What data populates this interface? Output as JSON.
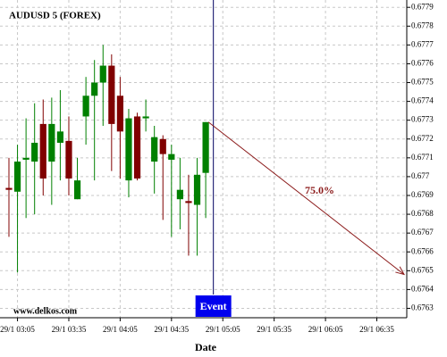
{
  "chart_data": {
    "type": "candlestick",
    "title": "AUDUSD 5 (FOREX)",
    "x_label": "Date",
    "watermark": "www.delkos.com",
    "categories": [
      null,
      "29/1 03:05",
      null,
      null,
      null,
      null,
      null,
      "29/1 03:35",
      null,
      null,
      null,
      null,
      null,
      "29/1 04:05",
      null,
      null,
      null,
      null,
      null,
      "29/1 04:35",
      null,
      null,
      null,
      null,
      null,
      "29/1 05:05",
      null,
      null,
      null,
      null,
      null,
      "29/1 05:35",
      null,
      null,
      null,
      null,
      null,
      "29/1 06:05",
      null,
      null,
      null,
      null,
      null,
      "29/1 06:35",
      null,
      null,
      null
    ],
    "open": [
      0.67694,
      0.67692,
      0.67709,
      0.67708,
      0.67728,
      0.67708,
      0.67718,
      0.67719,
      0.67688,
      0.67732,
      0.67743,
      0.6775,
      0.67759,
      0.67743,
      0.67698,
      0.67732,
      0.67731,
      0.67708,
      0.6772,
      0.67709,
      0.67688,
      0.67687,
      0.67685,
      0.67702,
      null,
      null,
      null,
      null,
      null,
      null,
      null,
      null,
      null,
      null,
      null,
      null,
      null,
      null,
      null,
      null,
      null,
      null,
      null,
      null,
      null,
      null,
      null
    ],
    "high": [
      0.6771,
      0.67717,
      0.67731,
      0.67739,
      0.67741,
      0.67742,
      0.67746,
      0.67732,
      0.6771,
      0.67753,
      0.67762,
      0.6777,
      0.67765,
      0.67753,
      0.67736,
      0.67734,
      0.67741,
      0.67727,
      0.67722,
      0.67717,
      0.6771,
      0.67701,
      0.6771,
      0.67729,
      null,
      null,
      null,
      null,
      null,
      null,
      null,
      null,
      null,
      null,
      null,
      null,
      null,
      null,
      null,
      null,
      null,
      null,
      null,
      null,
      null,
      null,
      null
    ],
    "low": [
      0.67668,
      0.67649,
      0.67678,
      0.6768,
      0.6769,
      0.67685,
      0.67698,
      0.6769,
      0.67688,
      0.67717,
      0.67698,
      0.67727,
      0.67703,
      0.67699,
      0.67689,
      0.67698,
      0.67724,
      0.67691,
      0.67677,
      0.67668,
      0.67672,
      0.67658,
      0.67658,
      0.67678,
      null,
      null,
      null,
      null,
      null,
      null,
      null,
      null,
      null,
      null,
      null,
      null,
      null,
      null,
      null,
      null,
      null,
      null,
      null,
      null,
      null,
      null,
      null
    ],
    "close": [
      0.67693,
      0.67708,
      0.6771,
      0.67718,
      0.67699,
      0.67728,
      0.67724,
      0.67699,
      0.67698,
      0.67743,
      0.6775,
      0.67759,
      0.67728,
      0.67724,
      0.67731,
      0.67699,
      0.67732,
      0.67721,
      0.67712,
      0.67712,
      0.67693,
      0.67686,
      0.67701,
      0.67729,
      null,
      null,
      null,
      null,
      null,
      null,
      null,
      null,
      null,
      null,
      null,
      null,
      null,
      null,
      null,
      null,
      null,
      null,
      null,
      null,
      null,
      null,
      null
    ],
    "up_color": "#008000",
    "down_color": "#800000",
    "event": {
      "label": "Event",
      "color": "#0000ee"
    },
    "forecast": {
      "label": "75.0%",
      "value": 0.67648,
      "color": "#8b1a1a"
    },
    "ylim": [
      0.67625,
      0.67792
    ],
    "yticks": [
      0.6763,
      0.6764,
      0.6765,
      0.6766,
      0.6767,
      0.6768,
      0.6769,
      0.677,
      0.6771,
      0.6772,
      0.6773,
      0.6774,
      0.6775,
      0.6776,
      0.6777,
      0.6778,
      0.6779
    ],
    "grid": true
  }
}
